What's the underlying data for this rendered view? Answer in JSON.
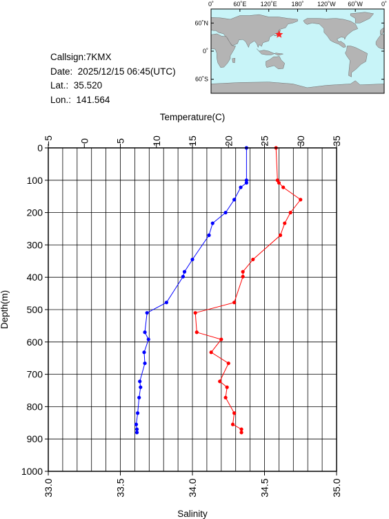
{
  "station": {
    "callsign_label": "Callsign:",
    "callsign": "7KMX",
    "date_label": "Date:",
    "date": "2025/12/15 06:45(UTC)",
    "lat_label": "Lat.:",
    "lat": "35.520",
    "lon_label": "Lon.:",
    "lon": "141.564"
  },
  "map": {
    "lon_labels": [
      "0˚",
      "60˚E",
      "120˚E",
      "180˚",
      "120˚W",
      "60˚W",
      "0˚"
    ],
    "lat_labels": [
      "60˚N",
      "0˚",
      "60˚S"
    ],
    "colors": {
      "ocean": "#c8f4f8",
      "land": "#b4b4b4",
      "marker": "#ff2020"
    },
    "marker_icon": "star-icon"
  },
  "chart_data": {
    "type": "line",
    "title": "",
    "xlabel_top": "Temperature(C)",
    "xlabel_bottom": "Salinity",
    "ylabel": "Depth(m)",
    "xlim_temperature": [
      -5,
      35
    ],
    "xlim_salinity": [
      33.0,
      35.0
    ],
    "ylim": [
      0,
      1000
    ],
    "temperature_ticks": [
      "−5",
      "0",
      "5",
      "10",
      "15",
      "20",
      "25",
      "30",
      "35"
    ],
    "salinity_ticks": [
      "33.0",
      "33.5",
      "34.0",
      "34.5",
      "35.0"
    ],
    "depth_ticks": [
      "0",
      "100",
      "200",
      "300",
      "400",
      "500",
      "600",
      "700",
      "800",
      "900",
      "1000"
    ],
    "grid": true,
    "series": [
      {
        "color": "#0000ff",
        "axis": "temperature",
        "points": [
          [
            22.5,
            0
          ],
          [
            22.5,
            100
          ],
          [
            22.5,
            108
          ],
          [
            21.7,
            122
          ],
          [
            20.8,
            160
          ],
          [
            19.6,
            200
          ],
          [
            17.8,
            233
          ],
          [
            17.3,
            270
          ],
          [
            15.0,
            345
          ],
          [
            13.9,
            383
          ],
          [
            13.7,
            398
          ],
          [
            11.4,
            478
          ],
          [
            8.7,
            510
          ],
          [
            8.4,
            570
          ],
          [
            8.9,
            592
          ],
          [
            8.3,
            632
          ],
          [
            8.4,
            666
          ],
          [
            7.7,
            722
          ],
          [
            7.8,
            740
          ],
          [
            7.6,
            772
          ],
          [
            7.4,
            820
          ],
          [
            7.2,
            855
          ],
          [
            7.3,
            870
          ],
          [
            7.3,
            880
          ]
        ]
      },
      {
        "color": "#ff0000",
        "axis": "salinity",
        "points": [
          [
            34.58,
            0
          ],
          [
            34.59,
            100
          ],
          [
            34.6,
            108
          ],
          [
            34.63,
            122
          ],
          [
            34.75,
            160
          ],
          [
            34.68,
            200
          ],
          [
            34.64,
            233
          ],
          [
            34.61,
            270
          ],
          [
            34.42,
            345
          ],
          [
            34.35,
            383
          ],
          [
            34.35,
            398
          ],
          [
            34.29,
            478
          ],
          [
            34.02,
            510
          ],
          [
            34.03,
            570
          ],
          [
            34.2,
            592
          ],
          [
            34.13,
            632
          ],
          [
            34.25,
            666
          ],
          [
            34.19,
            722
          ],
          [
            34.24,
            740
          ],
          [
            34.23,
            772
          ],
          [
            34.29,
            820
          ],
          [
            34.28,
            855
          ],
          [
            34.34,
            870
          ],
          [
            34.34,
            880
          ]
        ]
      }
    ]
  }
}
